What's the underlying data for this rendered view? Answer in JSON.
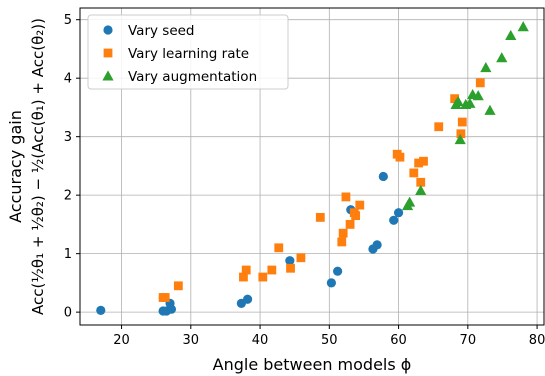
{
  "chart_data": {
    "type": "scatter",
    "title": "",
    "xlabel": "Angle between models ϕ",
    "ylabel_line1": "Accuracy gain",
    "ylabel_line2": "Acc(½θ₁ + ½θ₂) − ½(Acc(θ₁) + Acc(θ₂))",
    "xlim": [
      14,
      81
    ],
    "ylim": [
      -0.22,
      5.2
    ],
    "xticks": [
      20,
      30,
      40,
      50,
      60,
      70,
      80
    ],
    "yticks": [
      0,
      1,
      2,
      3,
      4,
      5
    ],
    "grid": true,
    "legend_position": "top-left",
    "series": [
      {
        "name": "Vary seed",
        "marker": "circle",
        "color": "#1f77b4",
        "points": [
          [
            17,
            0.03
          ],
          [
            26,
            0.02
          ],
          [
            26.5,
            0.02
          ],
          [
            27,
            0.15
          ],
          [
            27.2,
            0.05
          ],
          [
            37.3,
            0.15
          ],
          [
            38.2,
            0.22
          ],
          [
            44.3,
            0.88
          ],
          [
            50.3,
            0.5
          ],
          [
            51.2,
            0.7
          ],
          [
            53.1,
            1.75
          ],
          [
            56.3,
            1.08
          ],
          [
            56.9,
            1.15
          ],
          [
            57.8,
            2.32
          ],
          [
            59.3,
            1.57
          ],
          [
            60,
            1.7
          ]
        ]
      },
      {
        "name": "Vary learning rate",
        "marker": "square",
        "color": "#ff7f0e",
        "points": [
          [
            26,
            0.25
          ],
          [
            26.3,
            0.25
          ],
          [
            28.2,
            0.45
          ],
          [
            37.6,
            0.6
          ],
          [
            38,
            0.72
          ],
          [
            40.4,
            0.6
          ],
          [
            41.7,
            0.72
          ],
          [
            42.7,
            1.1
          ],
          [
            44.4,
            0.75
          ],
          [
            45.9,
            0.93
          ],
          [
            48.7,
            1.62
          ],
          [
            51.8,
            1.2
          ],
          [
            52,
            1.35
          ],
          [
            52.4,
            1.97
          ],
          [
            53,
            1.5
          ],
          [
            53.6,
            1.7
          ],
          [
            53.8,
            1.65
          ],
          [
            54.4,
            1.83
          ],
          [
            59.8,
            2.7
          ],
          [
            60.2,
            2.65
          ],
          [
            62.2,
            2.38
          ],
          [
            62.9,
            2.55
          ],
          [
            63.2,
            2.22
          ],
          [
            63.6,
            2.58
          ],
          [
            65.8,
            3.17
          ],
          [
            68.1,
            3.65
          ],
          [
            69,
            3.05
          ],
          [
            69.2,
            3.25
          ],
          [
            71.8,
            3.92
          ]
        ]
      },
      {
        "name": "Vary augmentation",
        "marker": "triangle",
        "color": "#2ca02c",
        "points": [
          [
            61.3,
            1.82
          ],
          [
            61.6,
            1.88
          ],
          [
            63.2,
            2.08
          ],
          [
            68.3,
            3.55
          ],
          [
            68.6,
            3.6
          ],
          [
            68.9,
            2.95
          ],
          [
            69.7,
            3.55
          ],
          [
            70.3,
            3.57
          ],
          [
            70.7,
            3.72
          ],
          [
            71.5,
            3.7
          ],
          [
            72.6,
            4.18
          ],
          [
            73.2,
            3.45
          ],
          [
            74.9,
            4.35
          ],
          [
            76.2,
            4.73
          ],
          [
            78,
            4.88
          ]
        ]
      }
    ]
  }
}
